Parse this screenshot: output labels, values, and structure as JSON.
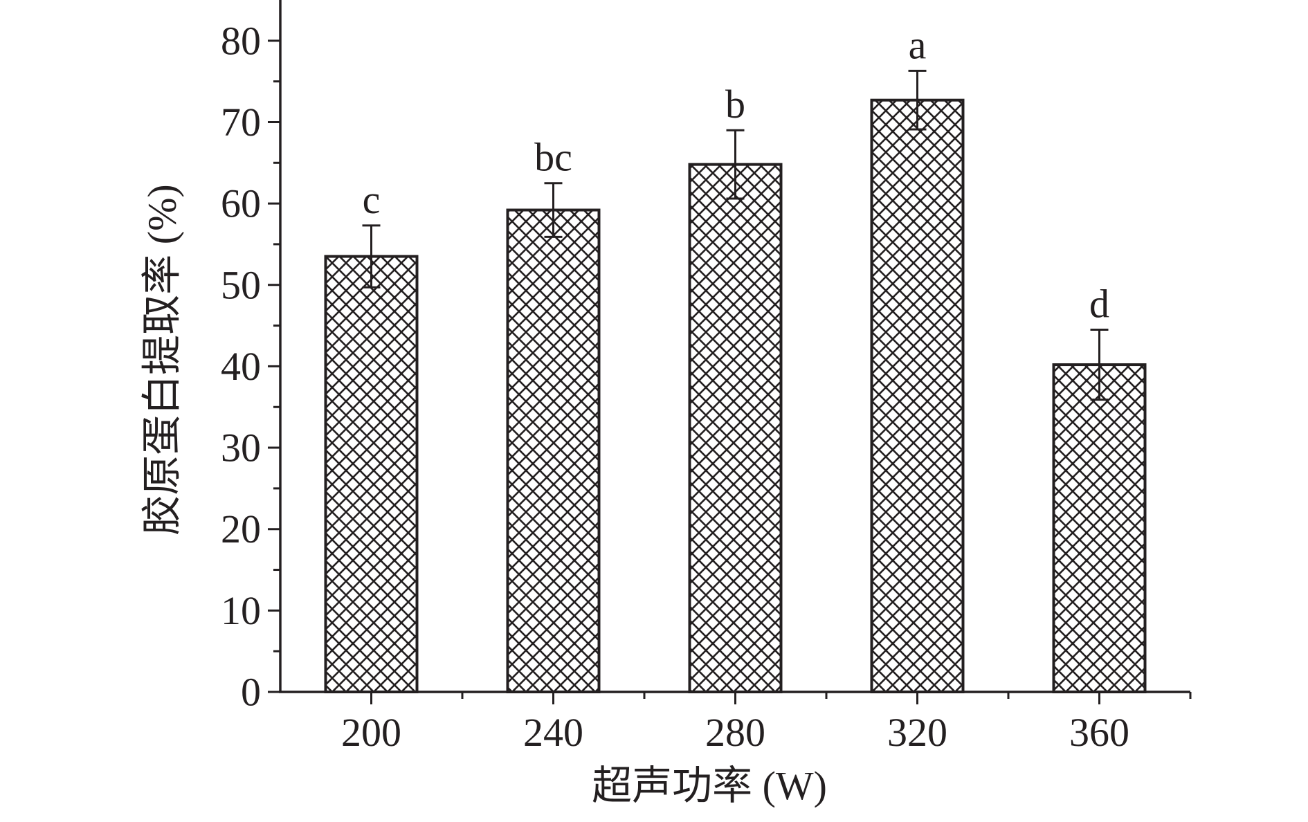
{
  "chart_data": {
    "type": "bar",
    "xlabel": "超声功率 (W)",
    "ylabel": "胶原蛋白提取率 (%)",
    "categories": [
      "200",
      "240",
      "280",
      "320",
      "360"
    ],
    "values": [
      53.5,
      59.2,
      64.8,
      72.7,
      40.2
    ],
    "errors": [
      3.8,
      3.3,
      4.2,
      3.6,
      4.3
    ],
    "significance": [
      "c",
      "bc",
      "b",
      "a",
      "d"
    ],
    "ylim": [
      0,
      85
    ],
    "yticks": [
      0,
      10,
      20,
      30,
      40,
      50,
      60,
      70,
      80
    ],
    "y_tick_labels": [
      "0",
      "10",
      "20",
      "30",
      "40",
      "50",
      "60",
      "70",
      "80"
    ],
    "grid": false,
    "legend": "none",
    "bar_fill": "crosshatch",
    "colors": {
      "ink": "#231f20",
      "background": "#ffffff"
    }
  }
}
